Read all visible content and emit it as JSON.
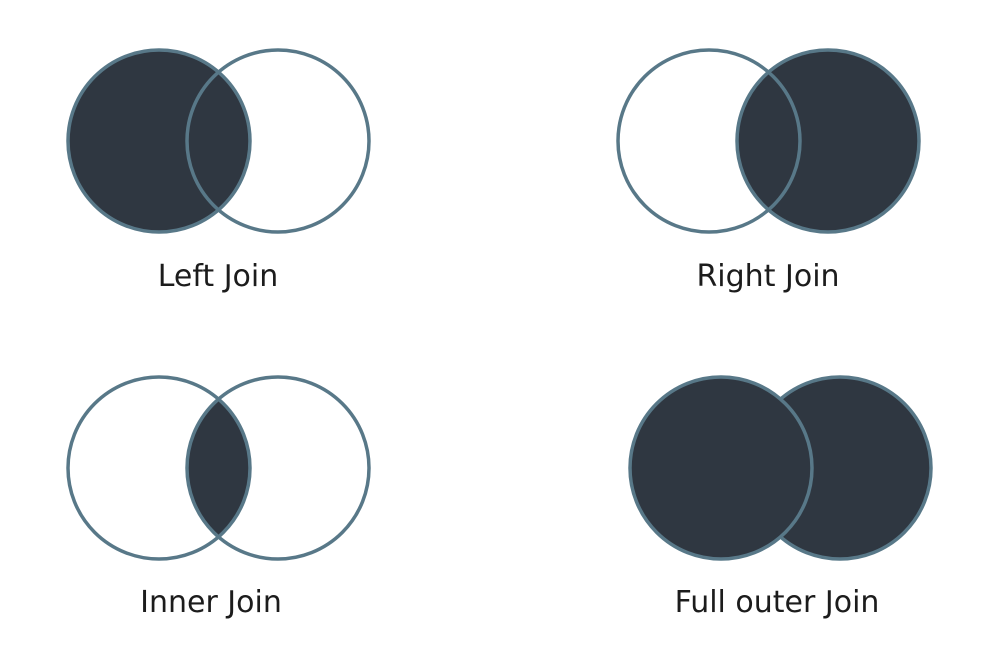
{
  "colors": {
    "fill": "#2f3741",
    "stroke": "#587888",
    "background": "#ffffff",
    "text": "#1c1c1c"
  },
  "diagrams": [
    {
      "id": "left",
      "label": "Left Join"
    },
    {
      "id": "right",
      "label": "Right Join"
    },
    {
      "id": "inner",
      "label": "Inner Join"
    },
    {
      "id": "full",
      "label": "Full outer Join"
    }
  ]
}
